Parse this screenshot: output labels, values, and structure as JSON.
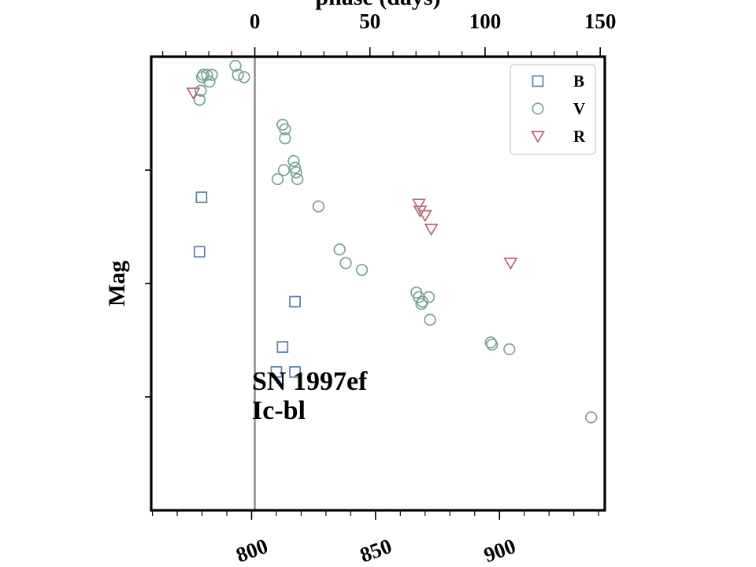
{
  "chart_data": {
    "type": "scatter",
    "top_axis": {
      "label": "phase (days)",
      "range": [
        -45,
        152
      ],
      "major_ticks": [
        0,
        50,
        100,
        150
      ],
      "minor_step": 10
    },
    "bottom_axis": {
      "label": "",
      "range": [
        759.5,
        942.5
      ],
      "major_ticks": [
        800,
        850,
        900
      ],
      "minor_step": 10
    },
    "ylabel": "Mag",
    "y_inverted": true,
    "y_range": [
      0,
      10
    ],
    "y_ticks": [
      2.5,
      5,
      7.5
    ],
    "y_tick_labels": false,
    "reference_line": {
      "axis": "phase",
      "value": 0,
      "color": "#808080"
    },
    "annotation": [
      "SN 1997ef",
      "Ic-bl"
    ],
    "legend": {
      "placement": "top-right"
    },
    "series": [
      {
        "name": "B",
        "marker": "square",
        "color": "#5a7fa8",
        "points": [
          [
            779.8,
            3.1
          ],
          [
            779.0,
            4.3
          ],
          [
            817.5,
            5.4
          ],
          [
            812.5,
            6.4
          ],
          [
            810.0,
            6.95
          ],
          [
            817.5,
            6.95
          ]
        ]
      },
      {
        "name": "V",
        "marker": "circle",
        "color": "#79a492",
        "points": [
          [
            779.0,
            0.95
          ],
          [
            779.5,
            0.75
          ],
          [
            780.0,
            0.45
          ],
          [
            780.5,
            0.4
          ],
          [
            782.0,
            0.4
          ],
          [
            783.0,
            0.55
          ],
          [
            784.0,
            0.4
          ],
          [
            793.5,
            0.2
          ],
          [
            794.5,
            0.4
          ],
          [
            797.0,
            0.45
          ],
          [
            812.5,
            1.5
          ],
          [
            813.5,
            1.8
          ],
          [
            813.5,
            1.6
          ],
          [
            813.0,
            2.5
          ],
          [
            817.0,
            2.3
          ],
          [
            817.5,
            2.45
          ],
          [
            818.0,
            2.55
          ],
          [
            818.5,
            2.7
          ],
          [
            810.5,
            2.7
          ],
          [
            827.0,
            3.3
          ],
          [
            835.5,
            4.25
          ],
          [
            838.0,
            4.55
          ],
          [
            844.5,
            4.7
          ],
          [
            866.5,
            5.2
          ],
          [
            867.5,
            5.3
          ],
          [
            868.5,
            5.45
          ],
          [
            869.0,
            5.4
          ],
          [
            871.5,
            5.3
          ],
          [
            872.0,
            5.8
          ],
          [
            896.5,
            6.3
          ],
          [
            897.0,
            6.35
          ],
          [
            904.0,
            6.45
          ],
          [
            937.0,
            7.95
          ]
        ]
      },
      {
        "name": "R",
        "marker": "triangle-down",
        "color": "#b56677",
        "points": [
          [
            776.5,
            0.8
          ],
          [
            868.0,
            3.4
          ],
          [
            867.5,
            3.25
          ],
          [
            870.0,
            3.5
          ],
          [
            872.5,
            3.8
          ],
          [
            904.5,
            4.55
          ]
        ]
      }
    ]
  }
}
